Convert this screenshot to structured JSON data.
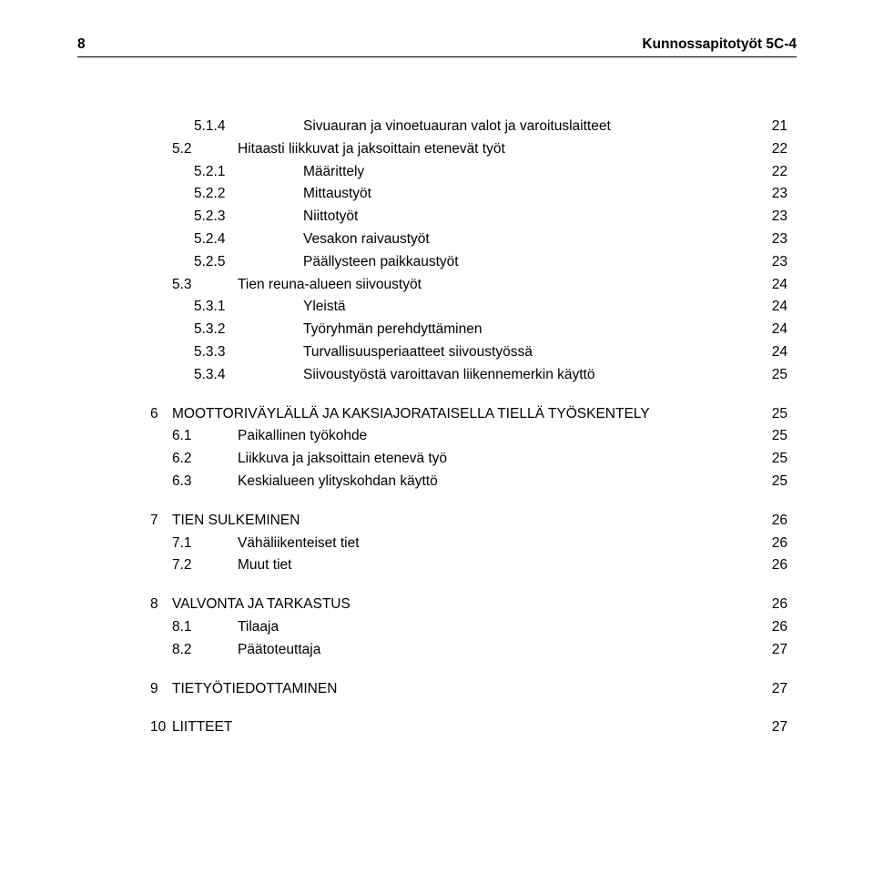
{
  "header": {
    "page_number": "8",
    "title": "Kunnossapitotyöt 5C-4"
  },
  "toc": [
    {
      "level": 2,
      "number": "5.1.4",
      "label": "Sivuauran ja vinoetuauran valot ja varoituslaitteet",
      "page": "21",
      "group_top": false
    },
    {
      "level": 1,
      "number": "5.2",
      "label": "Hitaasti liikkuvat ja jaksoittain etenevät työt",
      "page": "22",
      "group_top": false
    },
    {
      "level": 2,
      "number": "5.2.1",
      "label": "Määrittely",
      "page": "22",
      "group_top": false
    },
    {
      "level": 2,
      "number": "5.2.2",
      "label": "Mittaustyöt",
      "page": "23",
      "group_top": false
    },
    {
      "level": 2,
      "number": "5.2.3",
      "label": "Niittotyöt",
      "page": "23",
      "group_top": false
    },
    {
      "level": 2,
      "number": "5.2.4",
      "label": "Vesakon raivaustyöt",
      "page": "23",
      "group_top": false
    },
    {
      "level": 2,
      "number": "5.2.5",
      "label": "Päällysteen paikkaustyöt",
      "page": "23",
      "group_top": false
    },
    {
      "level": 1,
      "number": "5.3",
      "label": "Tien reuna-alueen siivoustyöt",
      "page": "24",
      "group_top": false
    },
    {
      "level": 2,
      "number": "5.3.1",
      "label": "Yleistä",
      "page": "24",
      "group_top": false
    },
    {
      "level": 2,
      "number": "5.3.2",
      "label": "Työryhmän perehdyttäminen",
      "page": "24",
      "group_top": false
    },
    {
      "level": 2,
      "number": "5.3.3",
      "label": "Turvallisuusperiaatteet siivoustyössä",
      "page": "24",
      "group_top": false
    },
    {
      "level": 2,
      "number": "5.3.4",
      "label": "Siivoustyöstä varoittavan liikennemerkin käyttö",
      "page": "25",
      "group_top": false
    },
    {
      "level": 0,
      "number": "6",
      "label": "MOOTTORIVÄYLÄLLÄ JA KAKSIAJORATAISELLA TIELLÄ TYÖSKENTELY",
      "page": "25",
      "group_top": true
    },
    {
      "level": 1,
      "number": "6.1",
      "label": "Paikallinen työkohde",
      "page": "25",
      "group_top": false
    },
    {
      "level": 1,
      "number": "6.2",
      "label": "Liikkuva ja jaksoittain etenevä työ",
      "page": "25",
      "group_top": false
    },
    {
      "level": 1,
      "number": "6.3",
      "label": "Keskialueen ylityskohdan käyttö",
      "page": "25",
      "group_top": false
    },
    {
      "level": 0,
      "number": "7",
      "label": "TIEN SULKEMINEN",
      "page": "26",
      "group_top": true
    },
    {
      "level": 1,
      "number": "7.1",
      "label": "Vähäliikenteiset tiet",
      "page": "26",
      "group_top": false
    },
    {
      "level": 1,
      "number": "7.2",
      "label": "Muut tiet",
      "page": "26",
      "group_top": false
    },
    {
      "level": 0,
      "number": "8",
      "label": "VALVONTA JA TARKASTUS",
      "page": "26",
      "group_top": true
    },
    {
      "level": 1,
      "number": "8.1",
      "label": "Tilaaja",
      "page": "26",
      "group_top": false
    },
    {
      "level": 1,
      "number": "8.2",
      "label": "Päätoteuttaja",
      "page": "27",
      "group_top": false
    },
    {
      "level": 0,
      "number": "9",
      "label": "TIETYÖTIEDOTTAMINEN",
      "page": "27",
      "group_top": true
    },
    {
      "level": 0,
      "number": "10",
      "label": "LIITTEET",
      "page": "27",
      "group_top": true
    }
  ]
}
